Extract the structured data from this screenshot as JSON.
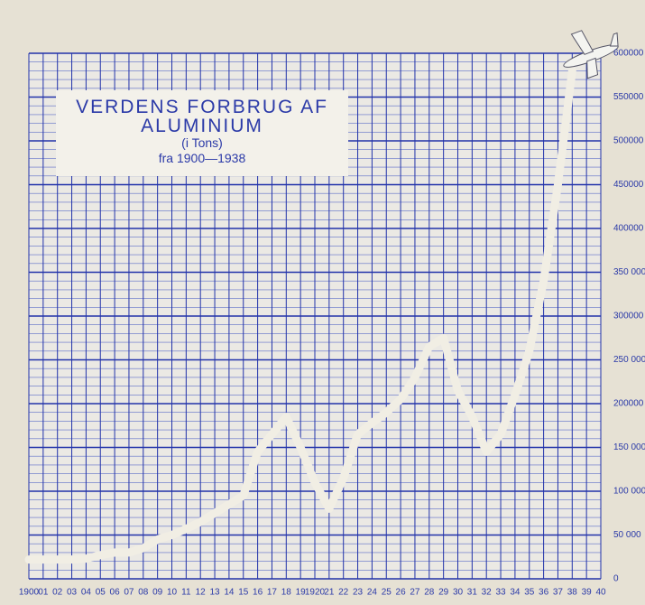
{
  "chart_data": {
    "type": "line",
    "title": "VERDENS FORBRUG AF ALUMINIUM",
    "subtitle": "(i Tons)",
    "note": "fra 1900—1938",
    "x": [
      1900,
      1901,
      1902,
      1903,
      1904,
      1905,
      1906,
      1907,
      1908,
      1909,
      1910,
      1911,
      1912,
      1913,
      1914,
      1915,
      1916,
      1917,
      1918,
      1919,
      1920,
      1921,
      1922,
      1923,
      1924,
      1925,
      1926,
      1927,
      1928,
      1929,
      1930,
      1931,
      1932,
      1933,
      1934,
      1935,
      1936,
      1937,
      1938
    ],
    "values": [
      22000,
      22000,
      22000,
      22000,
      23000,
      27000,
      30000,
      30000,
      35000,
      45000,
      50000,
      57000,
      65000,
      75000,
      85000,
      95000,
      145000,
      165000,
      185000,
      150000,
      110000,
      80000,
      115000,
      165000,
      178000,
      190000,
      205000,
      230000,
      265000,
      275000,
      215000,
      185000,
      145000,
      165000,
      210000,
      260000,
      340000,
      450000,
      580000
    ],
    "color": "#f1eee4",
    "xlim": [
      1900,
      1940
    ],
    "xticks": [
      1900,
      {
        "value": 1901,
        "label": "01"
      },
      {
        "value": 1902,
        "label": "02"
      },
      {
        "value": 1903,
        "label": "03"
      },
      {
        "value": 1904,
        "label": "04"
      },
      {
        "value": 1905,
        "label": "05"
      },
      {
        "value": 1906,
        "label": "06"
      },
      {
        "value": 1907,
        "label": "07"
      },
      {
        "value": 1908,
        "label": "08"
      },
      {
        "value": 1909,
        "label": "09"
      },
      {
        "value": 1910,
        "label": "10"
      },
      {
        "value": 1911,
        "label": "11"
      },
      {
        "value": 1912,
        "label": "12"
      },
      {
        "value": 1913,
        "label": "13"
      },
      {
        "value": 1914,
        "label": "14"
      },
      {
        "value": 1915,
        "label": "15"
      },
      {
        "value": 1916,
        "label": "16"
      },
      {
        "value": 1917,
        "label": "17"
      },
      {
        "value": 1918,
        "label": "18"
      },
      {
        "value": 1919,
        "label": "19"
      },
      1920,
      {
        "value": 1921,
        "label": "21"
      },
      {
        "value": 1922,
        "label": "22"
      },
      {
        "value": 1923,
        "label": "23"
      },
      {
        "value": 1924,
        "label": "24"
      },
      {
        "value": 1925,
        "label": "25"
      },
      {
        "value": 1926,
        "label": "26"
      },
      {
        "value": 1927,
        "label": "27"
      },
      {
        "value": 1928,
        "label": "28"
      },
      {
        "value": 1929,
        "label": "29"
      },
      {
        "value": 1930,
        "label": "30"
      },
      {
        "value": 1931,
        "label": "31"
      },
      {
        "value": 1932,
        "label": "32"
      },
      {
        "value": 1933,
        "label": "33"
      },
      {
        "value": 1934,
        "label": "34"
      },
      {
        "value": 1935,
        "label": "35"
      },
      {
        "value": 1936,
        "label": "36"
      },
      {
        "value": 1937,
        "label": "37"
      },
      {
        "value": 1938,
        "label": "38"
      },
      {
        "value": 1939,
        "label": "39"
      },
      {
        "value": 1940,
        "label": "40"
      }
    ],
    "ylim": [
      0,
      600000
    ],
    "yticks": [
      0,
      {
        "value": 50000,
        "label": "50 000"
      },
      {
        "value": 100000,
        "label": "100 000"
      },
      {
        "value": 150000,
        "label": "150 000"
      },
      200000,
      {
        "value": 250000,
        "label": "250 000"
      },
      300000,
      {
        "value": 350000,
        "label": "350 000"
      },
      400000,
      450000,
      500000,
      550000,
      600000
    ],
    "grid": true
  }
}
